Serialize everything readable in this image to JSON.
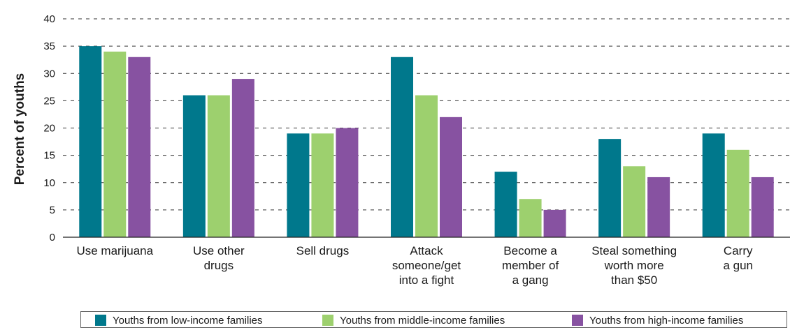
{
  "chart_data": {
    "type": "bar",
    "ylabel": "Percent of youths",
    "xlabel": "",
    "ylim": [
      0,
      40
    ],
    "yticks": [
      0,
      5,
      10,
      15,
      20,
      25,
      30,
      35,
      40
    ],
    "grid": "horizontal-dashed",
    "legend_position": "bottom",
    "categories": [
      [
        "Use marijuana"
      ],
      [
        "Use other",
        "drugs"
      ],
      [
        "Sell drugs"
      ],
      [
        "Attack",
        "someone/get",
        "into a fight"
      ],
      [
        "Become a",
        "member of",
        "a gang"
      ],
      [
        "Steal something",
        "worth more",
        "than $50"
      ],
      [
        "Carry",
        "a gun"
      ]
    ],
    "series": [
      {
        "name": "Youths from low-income families",
        "color": "#00788c",
        "values": [
          35,
          26,
          19,
          33,
          12,
          18,
          19
        ]
      },
      {
        "name": "Youths from middle-income families",
        "color": "#9dd06e",
        "values": [
          34,
          26,
          19,
          26,
          7,
          13,
          16
        ]
      },
      {
        "name": "Youths from high-income families",
        "color": "#8752a1",
        "values": [
          33,
          29,
          20,
          22,
          5,
          11,
          11
        ]
      }
    ]
  }
}
